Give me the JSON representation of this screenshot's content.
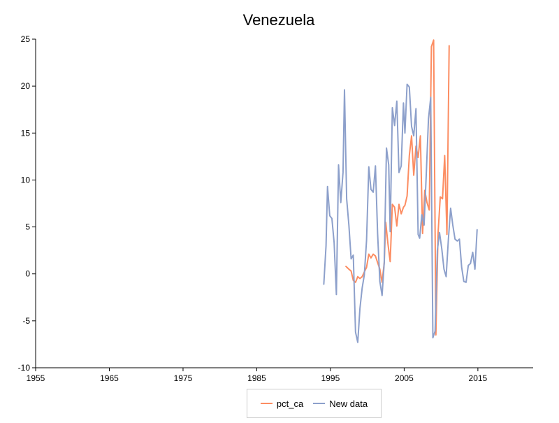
{
  "chart_data": {
    "type": "line",
    "title": "Venezuela",
    "xlabel": "",
    "ylabel": "",
    "xlim": [
      1955,
      2022.5
    ],
    "ylim": [
      -10,
      25
    ],
    "xticks": [
      1955,
      1965,
      1975,
      1985,
      1995,
      2005,
      2015
    ],
    "yticks": [
      -10,
      -5,
      0,
      5,
      10,
      15,
      20,
      25
    ],
    "grid": false,
    "legend_position": "bottom-center",
    "series": [
      {
        "name": "pct_ca",
        "color": "#fc8d62",
        "x": [
          1997.1,
          1997.5,
          1997.8,
          1998.1,
          1998.4,
          1998.7,
          1999.0,
          1999.3,
          1999.6,
          1999.9,
          2000.2,
          2000.5,
          2000.8,
          2001.1,
          2001.4,
          2001.7,
          2002.0,
          2002.3,
          2002.5,
          2002.8,
          2003.1,
          2003.4,
          2003.7,
          2004.0,
          2004.3,
          2004.6,
          2004.9,
          2005.1,
          2005.4,
          2005.7,
          2006.0,
          2006.3,
          2006.6,
          2006.9,
          2007.2,
          2007.5,
          2007.8,
          2008.1,
          2008.4,
          2008.7,
          2009.0,
          2009.3,
          2009.6,
          2009.9,
          2010.2,
          2010.5,
          2010.8,
          2011.1
        ],
        "y": [
          0.8,
          0.5,
          0.3,
          -0.7,
          -0.9,
          -0.3,
          -0.5,
          -0.3,
          0.2,
          0.7,
          2.1,
          1.7,
          2.1,
          1.9,
          1.2,
          0.5,
          -0.9,
          1.2,
          5.5,
          3.2,
          1.3,
          7.4,
          7.1,
          5.1,
          7.4,
          6.4,
          7.1,
          7.3,
          8.3,
          12.6,
          14.7,
          10.5,
          13.6,
          12.4,
          14.7,
          4.3,
          8.9,
          7.6,
          6.8,
          24.2,
          24.9,
          -6.5,
          4.3,
          8.2,
          8.0,
          12.6,
          4.2,
          24.3
        ]
      },
      {
        "name": "New data",
        "color": "#8da0cb",
        "x": [
          1994.1,
          1994.4,
          1994.6,
          1994.9,
          1995.2,
          1995.5,
          1995.8,
          1996.1,
          1996.4,
          1996.7,
          1996.9,
          1997.2,
          1997.5,
          1997.8,
          1998.1,
          1998.4,
          1998.7,
          1999.0,
          1999.3,
          1999.6,
          1999.9,
          2000.2,
          2000.5,
          2000.8,
          2001.1,
          2001.4,
          2001.7,
          2002.0,
          2002.3,
          2002.6,
          2002.9,
          2003.1,
          2003.4,
          2003.7,
          2004.0,
          2004.3,
          2004.6,
          2004.9,
          2005.1,
          2005.4,
          2005.7,
          2006.0,
          2006.3,
          2006.6,
          2006.9,
          2007.1,
          2007.4,
          2007.7,
          2008.0,
          2008.3,
          2008.6,
          2008.9,
          2009.2,
          2009.5,
          2009.8,
          2010.1,
          2010.4,
          2010.7,
          2011.0,
          2011.3,
          2011.6,
          2011.9,
          2012.2,
          2012.5,
          2012.8,
          2013.1,
          2013.4,
          2013.7,
          2014.0,
          2014.3,
          2014.6,
          2014.9
        ],
        "y": [
          -1.1,
          3.0,
          9.3,
          6.2,
          5.9,
          3.3,
          -2.2,
          11.6,
          7.6,
          10.8,
          19.6,
          8.0,
          5.2,
          1.6,
          2.0,
          -6.2,
          -7.3,
          -3.7,
          -1.5,
          -0.1,
          3.6,
          11.4,
          9.0,
          8.7,
          11.5,
          4.3,
          -0.8,
          -2.3,
          1.2,
          13.4,
          11.6,
          4.5,
          17.7,
          15.8,
          18.4,
          10.8,
          11.5,
          18.2,
          15.0,
          20.2,
          19.9,
          15.7,
          14.7,
          17.6,
          4.2,
          3.8,
          6.3,
          5.2,
          10.7,
          16.5,
          18.8,
          -6.8,
          -6.1,
          2.5,
          4.4,
          2.7,
          0.5,
          -0.3,
          3.7,
          7.0,
          5.2,
          3.7,
          3.5,
          3.7,
          0.7,
          -0.8,
          -0.9,
          0.9,
          1.1,
          2.3,
          0.5,
          4.7
        ]
      }
    ]
  }
}
